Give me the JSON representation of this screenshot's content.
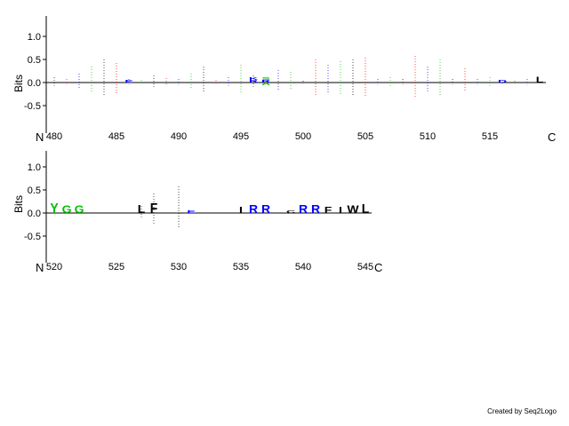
{
  "chart_data": [
    {
      "type": "sequence-logo",
      "ylabel": "Bits",
      "yticks": [
        "1.0",
        "0.5",
        "0.0",
        "-0.5"
      ],
      "xticks": [
        480,
        485,
        490,
        495,
        500,
        505,
        510,
        515
      ],
      "n_label": "N",
      "c_label": "C",
      "position_range": [
        480,
        519
      ],
      "letters": [
        {
          "pos": 486,
          "char": "E",
          "color": "#0000ff",
          "bits": 0.05
        },
        {
          "pos": 496,
          "char": "R",
          "color": "#0000ff",
          "bits": 0.06
        },
        {
          "pos": 496,
          "char": "K",
          "color": "#0000ff",
          "bits": 0.05
        },
        {
          "pos": 497,
          "char": "R",
          "color": "#0000ff",
          "bits": 0.05
        },
        {
          "pos": 497,
          "char": "S",
          "color": "#00c000",
          "bits": 0.04
        },
        {
          "pos": 497,
          "char": "A",
          "color": "#00c000",
          "bits": -0.04
        },
        {
          "pos": 516,
          "char": "D",
          "color": "#0000ff",
          "bits": 0.04
        },
        {
          "pos": 519,
          "char": "L",
          "color": "#000000",
          "bits": 0.12
        }
      ],
      "bar_colors": {
        "hydrophobic": "#000000",
        "acidic": "#ff0000",
        "basic": "#0000ff",
        "polar": "#00c000"
      }
    },
    {
      "type": "sequence-logo",
      "ylabel": "Bits",
      "yticks": [
        "1.0",
        "0.5",
        "0.0",
        "-0.5"
      ],
      "xticks": [
        520,
        525,
        530,
        535,
        540,
        545
      ],
      "n_label": "N",
      "c_label": "C",
      "position_range": [
        520,
        545
      ],
      "letters": [
        {
          "pos": 520,
          "char": "Y",
          "color": "#00c000",
          "bits": 0.22
        },
        {
          "pos": 521,
          "char": "G",
          "color": "#00c000",
          "bits": 0.16
        },
        {
          "pos": 522,
          "char": "G",
          "color": "#00c000",
          "bits": 0.16
        },
        {
          "pos": 527,
          "char": "L",
          "color": "#000000",
          "bits": 0.18
        },
        {
          "pos": 528,
          "char": "F",
          "color": "#000000",
          "bits": 0.22
        },
        {
          "pos": 531,
          "char": "E",
          "color": "#0000ff",
          "bits": 0.04
        },
        {
          "pos": 535,
          "char": "I",
          "color": "#000000",
          "bits": 0.14
        },
        {
          "pos": 536,
          "char": "R",
          "color": "#0000ff",
          "bits": 0.18
        },
        {
          "pos": 537,
          "char": "R",
          "color": "#0000ff",
          "bits": 0.18
        },
        {
          "pos": 539,
          "char": "C",
          "color": "#000000",
          "bits": 0.06
        },
        {
          "pos": 540,
          "char": "R",
          "color": "#0000ff",
          "bits": 0.18
        },
        {
          "pos": 541,
          "char": "R",
          "color": "#0000ff",
          "bits": 0.18
        },
        {
          "pos": 542,
          "char": "F",
          "color": "#000000",
          "bits": 0.14
        },
        {
          "pos": 543,
          "char": "I",
          "color": "#000000",
          "bits": 0.14
        },
        {
          "pos": 544,
          "char": "W",
          "color": "#000000",
          "bits": 0.16
        },
        {
          "pos": 545,
          "char": "L",
          "color": "#000000",
          "bits": 0.2
        }
      ]
    }
  ],
  "footer": {
    "credit": "Created by Seq2Logo"
  }
}
